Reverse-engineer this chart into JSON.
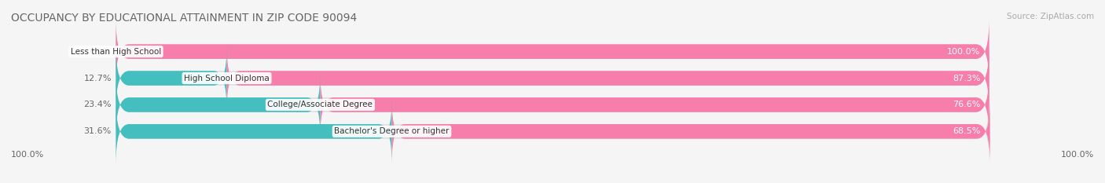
{
  "title": "OCCUPANCY BY EDUCATIONAL ATTAINMENT IN ZIP CODE 90094",
  "source": "Source: ZipAtlas.com",
  "categories": [
    "Less than High School",
    "High School Diploma",
    "College/Associate Degree",
    "Bachelor's Degree or higher"
  ],
  "owner_pct": [
    0.0,
    12.7,
    23.4,
    31.6
  ],
  "renter_pct": [
    100.0,
    87.3,
    76.6,
    68.5
  ],
  "owner_color": "#45bec0",
  "renter_color": "#f77daa",
  "bg_color": "#f5f5f5",
  "bar_bg_color": "#e0e0e0",
  "title_fontsize": 10,
  "source_fontsize": 7.5,
  "label_fontsize": 7.5,
  "bar_label_fontsize": 8,
  "legend_fontsize": 8,
  "axis_label_left": "100.0%",
  "axis_label_right": "100.0%"
}
